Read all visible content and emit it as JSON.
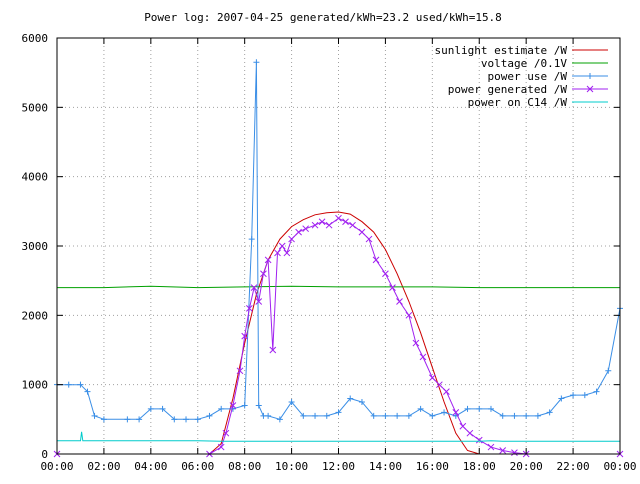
{
  "chart_data": {
    "type": "line",
    "title": "Power log: 2007-04-25 generated/kWh=23.2 used/kWh=15.8",
    "xlabel": "",
    "ylabel": "",
    "xlim": [
      0,
      24
    ],
    "ylim": [
      0,
      6000
    ],
    "x_ticks": [
      {
        "value": 0,
        "label": "00:00"
      },
      {
        "value": 2,
        "label": "02:00"
      },
      {
        "value": 4,
        "label": "04:00"
      },
      {
        "value": 6,
        "label": "06:00"
      },
      {
        "value": 8,
        "label": "08:00"
      },
      {
        "value": 10,
        "label": "10:00"
      },
      {
        "value": 12,
        "label": "12:00"
      },
      {
        "value": 14,
        "label": "14:00"
      },
      {
        "value": 16,
        "label": "16:00"
      },
      {
        "value": 18,
        "label": "18:00"
      },
      {
        "value": 20,
        "label": "20:00"
      },
      {
        "value": 22,
        "label": "22:00"
      },
      {
        "value": 24,
        "label": "00:00"
      }
    ],
    "y_ticks": [
      {
        "value": 0,
        "label": "0"
      },
      {
        "value": 1000,
        "label": "1000"
      },
      {
        "value": 2000,
        "label": "2000"
      },
      {
        "value": 3000,
        "label": "3000"
      },
      {
        "value": 4000,
        "label": "4000"
      },
      {
        "value": 5000,
        "label": "5000"
      },
      {
        "value": 6000,
        "label": "6000"
      }
    ],
    "grid": true,
    "legend_position": "top-right",
    "series": [
      {
        "name": "sunlight estimate /W",
        "color": "#cc0000",
        "marker": "none",
        "x": [
          0,
          6,
          6.5,
          7,
          7.5,
          8,
          8.5,
          9,
          9.5,
          10,
          10.5,
          11,
          11.5,
          12,
          12.5,
          13,
          13.5,
          14,
          14.5,
          15,
          15.5,
          16,
          16.5,
          17,
          17.5,
          18,
          24
        ],
        "y": [
          0,
          0,
          0,
          150,
          800,
          1600,
          2300,
          2800,
          3100,
          3280,
          3380,
          3450,
          3480,
          3490,
          3460,
          3350,
          3200,
          2950,
          2600,
          2200,
          1750,
          1250,
          750,
          300,
          50,
          0,
          0
        ]
      },
      {
        "name": "voltage /0.1V",
        "color": "#00a000",
        "marker": "none",
        "x": [
          0,
          2,
          4,
          6,
          8,
          10,
          12,
          14,
          16,
          18,
          20,
          22,
          24
        ],
        "y": [
          2400,
          2400,
          2420,
          2400,
          2410,
          2420,
          2410,
          2410,
          2410,
          2400,
          2400,
          2400,
          2400
        ]
      },
      {
        "name": "power use /W",
        "color": "#3a8ee6",
        "marker": "plus",
        "x": [
          0,
          0.5,
          1,
          1.3,
          1.6,
          2,
          3,
          3.5,
          4,
          4.5,
          5,
          5.5,
          6,
          6.5,
          7,
          7.5,
          8,
          8.3,
          8.5,
          8.6,
          8.8,
          9,
          9.5,
          10,
          10.5,
          11,
          11.5,
          12,
          12.5,
          13,
          13.5,
          14,
          14.5,
          15,
          15.5,
          16,
          16.5,
          17,
          17.5,
          18,
          18.5,
          19,
          19.5,
          20,
          20.5,
          21,
          21.5,
          22,
          22.5,
          23,
          23.5,
          24
        ],
        "y": [
          1000,
          1000,
          1000,
          900,
          550,
          500,
          500,
          500,
          650,
          650,
          500,
          500,
          500,
          550,
          650,
          650,
          700,
          3100,
          5650,
          700,
          550,
          550,
          500,
          750,
          550,
          550,
          550,
          600,
          800,
          750,
          550,
          550,
          550,
          550,
          650,
          550,
          600,
          550,
          650,
          650,
          650,
          550,
          550,
          550,
          550,
          600,
          800,
          850,
          850,
          900,
          1200,
          2100
        ]
      },
      {
        "name": "power generated /W",
        "color": "#a020f0",
        "marker": "cross",
        "x": [
          0,
          6.5,
          7,
          7.2,
          7.5,
          7.8,
          8,
          8.2,
          8.4,
          8.6,
          8.8,
          9,
          9.2,
          9.4,
          9.6,
          9.8,
          10,
          10.3,
          10.6,
          11,
          11.3,
          11.6,
          12,
          12.3,
          12.6,
          13,
          13.3,
          13.6,
          14,
          14.3,
          14.6,
          15,
          15.3,
          15.6,
          16,
          16.3,
          16.6,
          17,
          17.3,
          17.6,
          18,
          18.5,
          19,
          19.5,
          20,
          24
        ],
        "y": [
          0,
          0,
          100,
          300,
          700,
          1200,
          1700,
          2100,
          2400,
          2200,
          2600,
          2800,
          1500,
          2900,
          3000,
          2900,
          3100,
          3200,
          3250,
          3300,
          3350,
          3300,
          3400,
          3350,
          3300,
          3200,
          3100,
          2800,
          2600,
          2400,
          2200,
          2000,
          1600,
          1400,
          1100,
          1000,
          900,
          600,
          400,
          300,
          200,
          100,
          50,
          20,
          0,
          0
        ]
      },
      {
        "name": "power on C14 /W",
        "color": "#00cccc",
        "marker": "none",
        "x": [
          0,
          1,
          1.05,
          1.1,
          2,
          6,
          7,
          8,
          10,
          12,
          14,
          16,
          18,
          18.5,
          19,
          20,
          22,
          24
        ],
        "y": [
          190,
          190,
          320,
          190,
          190,
          190,
          185,
          185,
          185,
          185,
          185,
          185,
          185,
          190,
          185,
          185,
          185,
          185
        ]
      }
    ]
  }
}
